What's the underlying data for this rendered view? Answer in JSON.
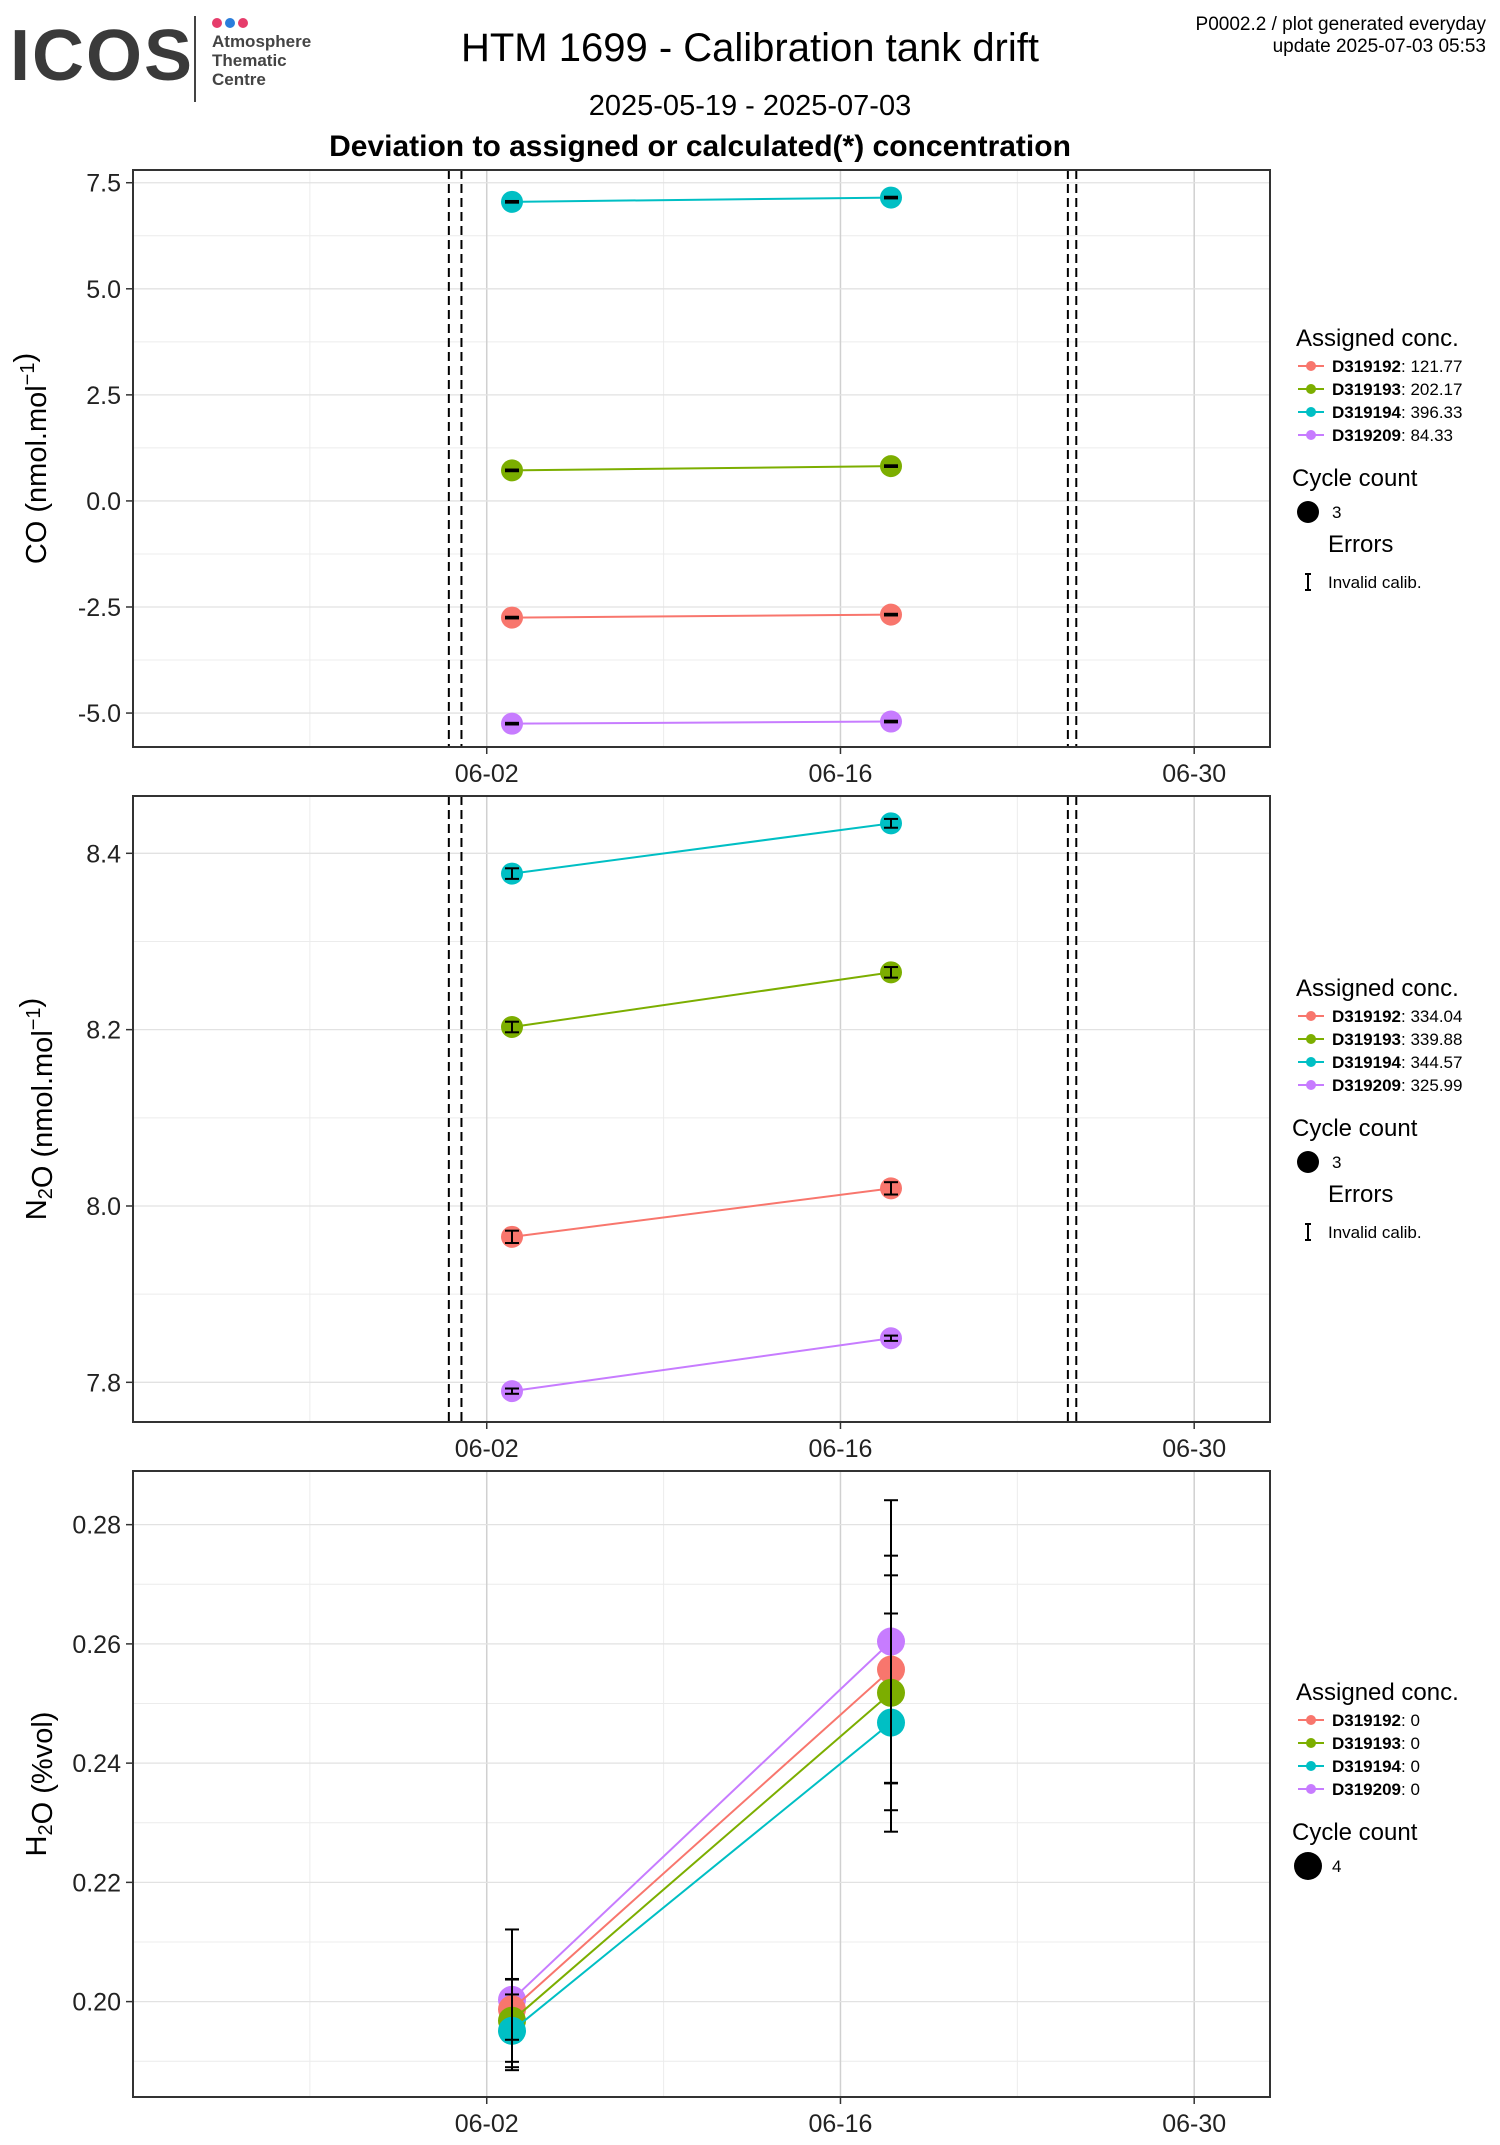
{
  "header": {
    "logo_text": "ICOS",
    "logo_sub": [
      "Atmosphere",
      "Thematic",
      "Centre"
    ],
    "logo_dot_colors": [
      "#e63c6b",
      "#2a7ddb",
      "#e63c6b"
    ],
    "title": "HTM 1699 - Calibration tank drift",
    "date_range": "2025-05-19 - 2025-07-03",
    "subtitle": "Deviation to assigned or calculated(*) concentration",
    "meta_line1": "P0002.2 / plot generated everyday",
    "meta_line2": "update  2025-07-03 05:53"
  },
  "colors": {
    "D319192": "#f8766d",
    "D319193": "#7cae00",
    "D319194": "#00bfc4",
    "D319209": "#c77cff"
  },
  "chart_data": [
    {
      "type": "line",
      "name": "CO",
      "ylabel": "CO (nmol.mol-1)",
      "ylim": [
        -5.8,
        7.8
      ],
      "yticks": [
        7.5,
        5.0,
        2.5,
        0.0,
        -2.5,
        -5.0
      ],
      "ytick_labels": [
        "7.5",
        "5.0",
        "2.5",
        "0.0",
        "-2.5",
        "-5.0"
      ],
      "xlim": [
        "2025-05-19",
        "2025-07-03"
      ],
      "xticks": [
        "2025-06-02",
        "2025-06-16",
        "2025-06-30"
      ],
      "xtick_labels": [
        "06-02",
        "06-16",
        "06-30"
      ],
      "vlines": [
        "2025-05-31 12:00",
        "2025-06-01",
        "2025-06-25",
        "2025-06-25 08:00"
      ],
      "x": [
        "2025-06-03",
        "2025-06-18"
      ],
      "series": [
        {
          "name": "D319194",
          "assigned": "396.33",
          "values": [
            7.05,
            7.15
          ],
          "err": [
            0.02,
            0.02
          ]
        },
        {
          "name": "D319193",
          "assigned": "202.17",
          "values": [
            0.72,
            0.82
          ],
          "err": [
            0.02,
            0.02
          ]
        },
        {
          "name": "D319192",
          "assigned": "121.77",
          "values": [
            -2.75,
            -2.68
          ],
          "err": [
            0.02,
            0.02
          ]
        },
        {
          "name": "D319209",
          "assigned": "84.33",
          "values": [
            -5.25,
            -5.2
          ],
          "err": [
            0.02,
            0.02
          ]
        }
      ],
      "legend": {
        "assigned_title": "Assigned conc.",
        "cycle_title": "Cycle count",
        "cycle_value": "3",
        "errors_title": "Errors",
        "errors_value": "Invalid calib."
      }
    },
    {
      "type": "line",
      "name": "N2O",
      "ylabel": "N2O (nmol.mol-1)",
      "ylim": [
        7.755,
        8.465
      ],
      "yticks": [
        8.4,
        8.2,
        8.0,
        7.8
      ],
      "ytick_labels": [
        "8.4",
        "8.2",
        "8.0",
        "7.8"
      ],
      "xlim": [
        "2025-05-19",
        "2025-07-03"
      ],
      "xticks": [
        "2025-06-02",
        "2025-06-16",
        "2025-06-30"
      ],
      "xtick_labels": [
        "06-02",
        "06-16",
        "06-30"
      ],
      "vlines": [
        "2025-05-31 12:00",
        "2025-06-01",
        "2025-06-25",
        "2025-06-25 08:00"
      ],
      "x": [
        "2025-06-03",
        "2025-06-18"
      ],
      "series": [
        {
          "name": "D319194",
          "assigned": "344.57",
          "values": [
            8.377,
            8.434
          ],
          "err": [
            0.006,
            0.005
          ]
        },
        {
          "name": "D319193",
          "assigned": "339.88",
          "values": [
            8.203,
            8.265
          ],
          "err": [
            0.006,
            0.006
          ]
        },
        {
          "name": "D319192",
          "assigned": "334.04",
          "values": [
            7.965,
            8.02
          ],
          "err": [
            0.007,
            0.007
          ]
        },
        {
          "name": "D319209",
          "assigned": "325.99",
          "values": [
            7.79,
            7.85
          ],
          "err": [
            0.003,
            0.003
          ]
        }
      ],
      "legend": {
        "assigned_title": "Assigned conc.",
        "cycle_title": "Cycle count",
        "cycle_value": "3",
        "errors_title": "Errors",
        "errors_value": "Invalid calib."
      }
    },
    {
      "type": "line",
      "name": "H2O",
      "ylabel": "H2O (%vol)",
      "ylim": [
        0.184,
        0.289
      ],
      "yticks": [
        0.28,
        0.26,
        0.24,
        0.22,
        0.2
      ],
      "ytick_labels": [
        "0.28",
        "0.26",
        "0.24",
        "0.22",
        "0.20"
      ],
      "xlim": [
        "2025-05-19",
        "2025-07-03"
      ],
      "xticks": [
        "2025-06-02",
        "2025-06-16",
        "2025-06-30"
      ],
      "xtick_labels": [
        "06-02",
        "06-16",
        "06-30"
      ],
      "vlines": [],
      "x": [
        "2025-06-03",
        "2025-06-18"
      ],
      "series": [
        {
          "name": "D319209",
          "assigned": "0",
          "values": [
            0.2003,
            0.2604
          ],
          "err": [
            0.0118,
            0.0237
          ]
        },
        {
          "name": "D319192",
          "assigned": "0",
          "values": [
            0.1987,
            0.2557
          ],
          "err": [
            0.0051,
            0.0191
          ]
        },
        {
          "name": "D319193",
          "assigned": "0",
          "values": [
            0.1968,
            0.2518
          ],
          "err": [
            0.0069,
            0.0197
          ]
        },
        {
          "name": "D319194",
          "assigned": "0",
          "values": [
            0.1951,
            0.2468
          ],
          "err": [
            0.0061,
            0.0183
          ]
        }
      ],
      "legend": {
        "assigned_title": "Assigned conc.",
        "cycle_title": "Cycle count",
        "cycle_value": "4"
      }
    }
  ]
}
